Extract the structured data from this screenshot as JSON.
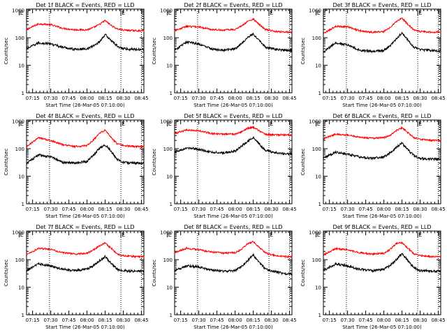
{
  "chart_data": {
    "type": "line",
    "ylabel": "Counts/sec",
    "xlabel": "Start Time (26-Mar-05 07:10:00)",
    "x_ticks": [
      "07:15",
      "07:30",
      "07:45",
      "08:00",
      "08:15",
      "08:30",
      "08:45"
    ],
    "x_ticks_min": [
      15,
      30,
      45,
      60,
      75,
      90,
      105
    ],
    "xlim_min": [
      10,
      107
    ],
    "y_ticks": [
      "1",
      "10",
      "100",
      "1000"
    ],
    "y_scale": "log",
    "ylim": [
      1,
      1100
    ],
    "marker_label": "E",
    "markers_min": [
      4,
      88
    ],
    "dotted_lines_min": [
      29,
      88,
      105
    ],
    "series_colors": {
      "events": "#000000",
      "lld": "#ff0000"
    },
    "panels": [
      {
        "title": "Det 1f BLACK = Events, RED = LLD",
        "x_min": [
          10,
          20,
          30,
          40,
          50,
          60,
          65,
          70,
          75,
          80,
          85,
          90,
          100,
          107
        ],
        "events": [
          40,
          65,
          60,
          45,
          38,
          40,
          50,
          70,
          130,
          80,
          50,
          40,
          38,
          38
        ],
        "lld": [
          200,
          320,
          300,
          220,
          195,
          195,
          230,
          300,
          420,
          280,
          210,
          190,
          180,
          180
        ]
      },
      {
        "title": "Det 2f BLACK = Events, RED = LLD",
        "x_min": [
          10,
          20,
          30,
          40,
          50,
          60,
          65,
          70,
          75,
          80,
          85,
          90,
          100,
          107
        ],
        "events": [
          35,
          70,
          60,
          40,
          35,
          40,
          60,
          100,
          140,
          80,
          45,
          40,
          35,
          35
        ],
        "lld": [
          180,
          260,
          250,
          200,
          190,
          200,
          260,
          380,
          480,
          300,
          200,
          180,
          160,
          160
        ]
      },
      {
        "title": "Det 3f BLACK = Events, RED = LLD",
        "x_min": [
          10,
          20,
          30,
          40,
          50,
          60,
          65,
          70,
          75,
          80,
          85,
          90,
          100,
          107
        ],
        "events": [
          30,
          65,
          55,
          35,
          32,
          35,
          50,
          90,
          150,
          80,
          45,
          38,
          34,
          34
        ],
        "lld": [
          140,
          260,
          250,
          180,
          160,
          170,
          230,
          380,
          520,
          300,
          190,
          170,
          160,
          160
        ]
      },
      {
        "title": "Det 4f BLACK = Events, RED = LLD",
        "x_min": [
          10,
          20,
          30,
          40,
          50,
          60,
          65,
          70,
          75,
          80,
          85,
          90,
          100,
          107
        ],
        "events": [
          30,
          60,
          50,
          32,
          30,
          35,
          55,
          100,
          140,
          80,
          40,
          32,
          30,
          30
        ],
        "lld": [
          120,
          250,
          200,
          140,
          120,
          130,
          200,
          350,
          480,
          250,
          150,
          130,
          120,
          120
        ]
      },
      {
        "title": "Det 5f BLACK = Events, RED = LLD",
        "x_min": [
          10,
          20,
          30,
          40,
          50,
          60,
          65,
          70,
          75,
          80,
          85,
          90,
          100,
          107
        ],
        "events": [
          75,
          110,
          95,
          75,
          70,
          80,
          120,
          180,
          260,
          150,
          90,
          75,
          65,
          65
        ],
        "lld": [
          350,
          480,
          450,
          360,
          340,
          340,
          400,
          550,
          600,
          450,
          330,
          320,
          320,
          320
        ]
      },
      {
        "title": "Det 6f BLACK = Events, RED = LLD",
        "x_min": [
          10,
          20,
          30,
          40,
          50,
          60,
          65,
          70,
          75,
          80,
          85,
          90,
          100,
          107
        ],
        "events": [
          45,
          75,
          65,
          50,
          45,
          50,
          70,
          110,
          160,
          90,
          55,
          45,
          42,
          42
        ],
        "lld": [
          230,
          340,
          320,
          260,
          240,
          250,
          300,
          450,
          580,
          380,
          250,
          220,
          200,
          200
        ]
      },
      {
        "title": "Det 7f BLACK = Events, RED = LLD",
        "x_min": [
          10,
          20,
          30,
          40,
          50,
          60,
          65,
          70,
          75,
          80,
          85,
          90,
          100,
          107
        ],
        "events": [
          40,
          70,
          60,
          45,
          40,
          45,
          60,
          90,
          130,
          75,
          45,
          40,
          38,
          38
        ],
        "lld": [
          150,
          260,
          240,
          180,
          160,
          170,
          220,
          320,
          400,
          260,
          160,
          140,
          130,
          130
        ]
      },
      {
        "title": "Det 8f BLACK = Events, RED = LLD",
        "x_min": [
          10,
          20,
          30,
          40,
          50,
          60,
          65,
          70,
          75,
          80,
          85,
          90,
          100,
          107
        ],
        "events": [
          40,
          60,
          55,
          42,
          38,
          40,
          55,
          90,
          150,
          80,
          45,
          40,
          32,
          30
        ],
        "lld": [
          180,
          260,
          230,
          190,
          175,
          180,
          230,
          380,
          450,
          280,
          180,
          150,
          130,
          130
        ]
      },
      {
        "title": "Det 9f BLACK = Events, RED = LLD",
        "x_min": [
          10,
          20,
          30,
          40,
          50,
          60,
          65,
          70,
          75,
          80,
          85,
          90,
          100,
          107
        ],
        "events": [
          40,
          70,
          60,
          45,
          40,
          45,
          60,
          100,
          170,
          90,
          50,
          40,
          38,
          38
        ],
        "lld": [
          150,
          250,
          230,
          180,
          160,
          170,
          230,
          380,
          420,
          260,
          160,
          140,
          130,
          130
        ]
      }
    ]
  }
}
